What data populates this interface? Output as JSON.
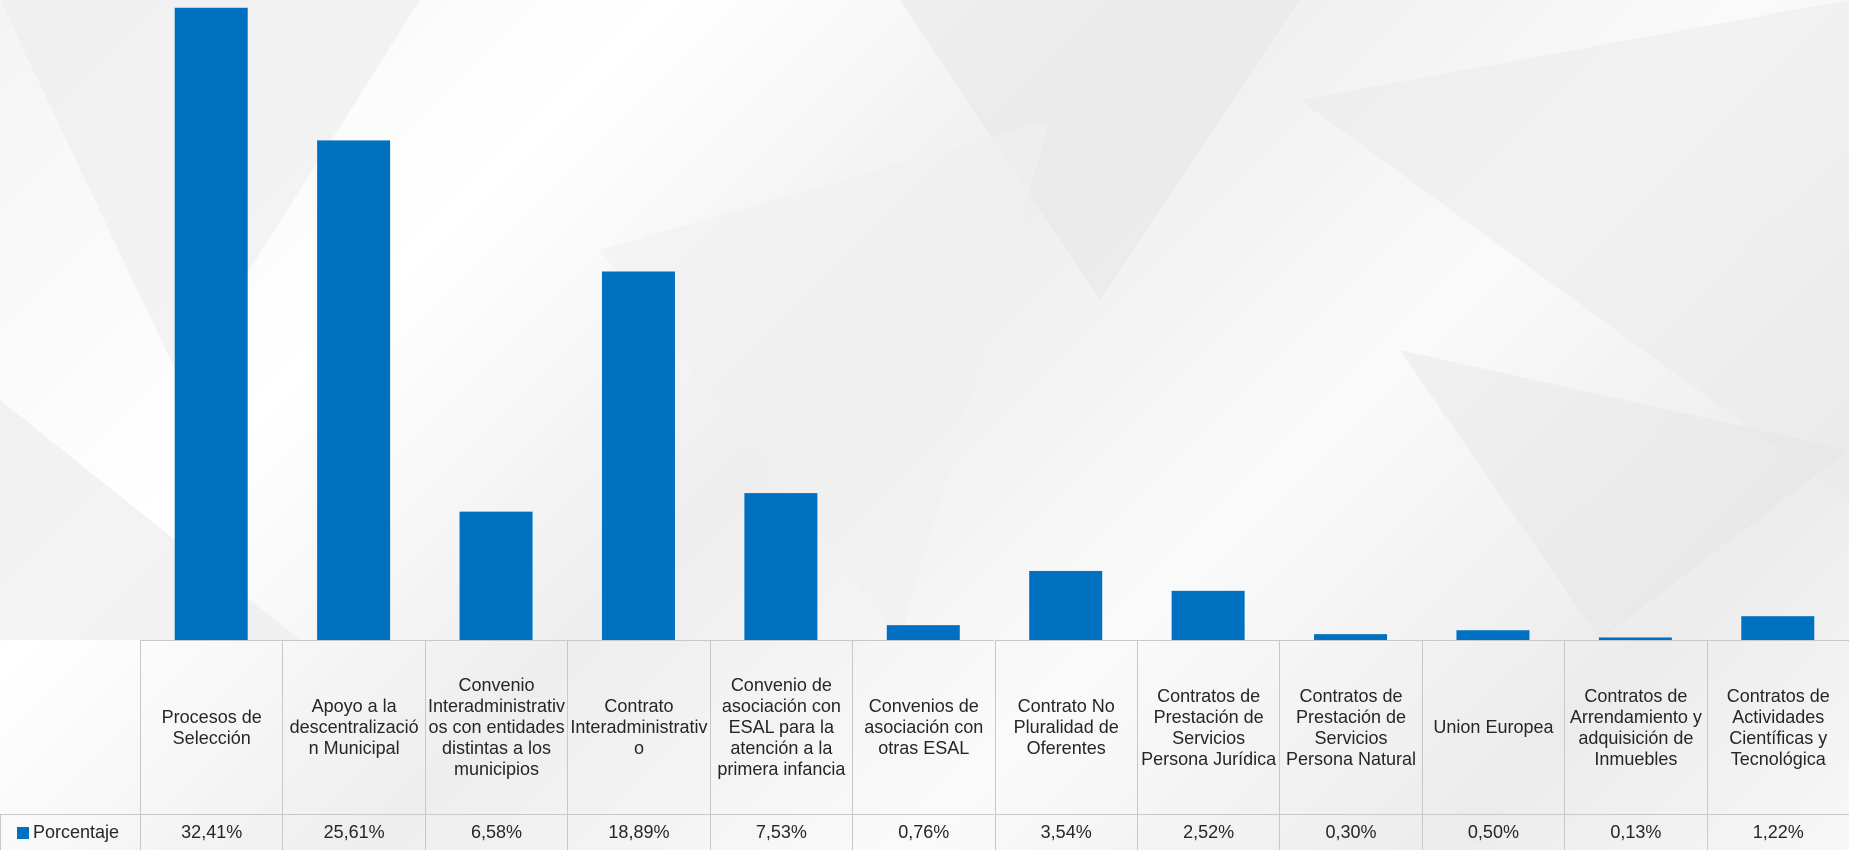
{
  "chart_data": {
    "type": "bar",
    "categories": [
      "Procesos de Selección",
      "Apoyo a la descentralización Municipal",
      "Convenio Interadministrativos con entidades distintas a los municipios",
      "Contrato Interadministrativo",
      "Convenio de asociación con ESAL para la atención a la primera infancia",
      "Convenios de asociación con otras ESAL",
      "Contrato No Pluralidad de Oferentes",
      "Contratos de Prestación de Servicios Persona Jurídica",
      "Contratos de Prestación de Servicios Persona Natural",
      "Union Europea",
      "Contratos de Arrendamiento y adquisición de Inmuebles",
      "Contratos de Actividades Científicas y Tecnológica"
    ],
    "series": [
      {
        "name": "Porcentaje",
        "color": "#0070c0",
        "values": [
          32.41,
          25.61,
          6.58,
          18.89,
          7.53,
          0.76,
          3.54,
          2.52,
          0.3,
          0.5,
          0.13,
          1.22
        ],
        "value_labels": [
          "32,41%",
          "25,61%",
          "6,58%",
          "18,89%",
          "7,53%",
          "0,76%",
          "3,54%",
          "2,52%",
          "0,30%",
          "0,50%",
          "0,13%",
          "1,22%"
        ]
      }
    ],
    "ylim": [
      0,
      32.5
    ]
  }
}
